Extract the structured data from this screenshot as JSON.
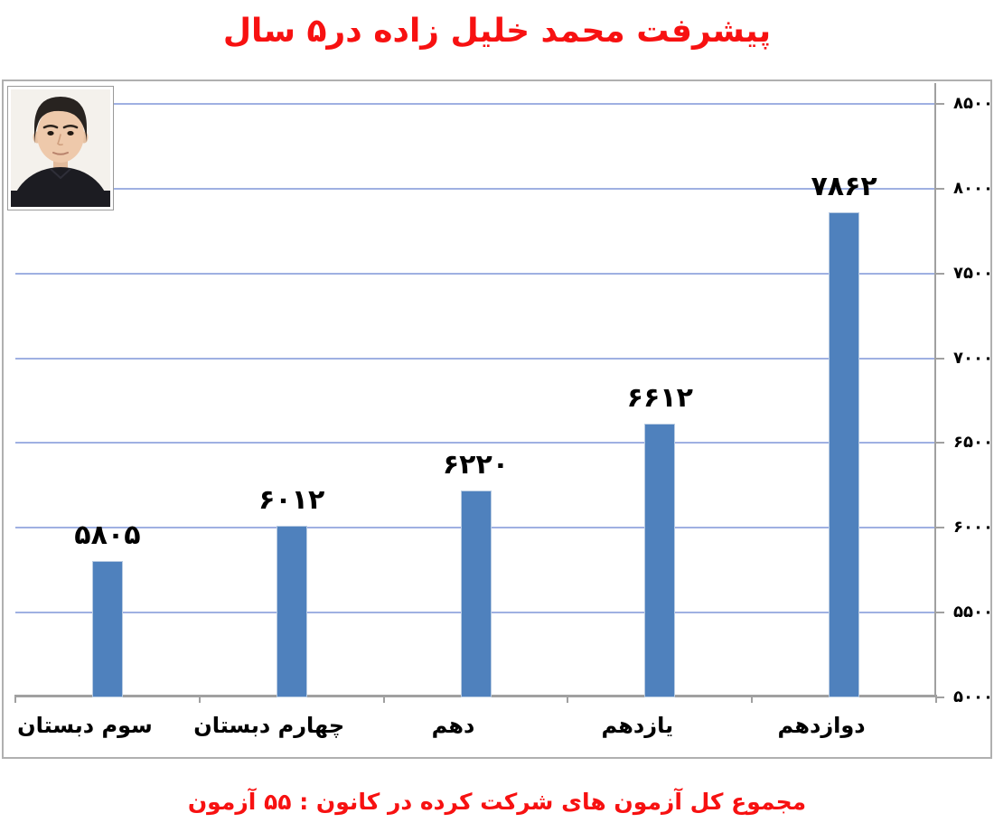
{
  "page": {
    "title": "پیشرفت محمد خلیل زاده در۵ سال",
    "caption": "مجموع کل آزمون های شرکت کرده در کانون : ۵۵ آزمون"
  },
  "icons": {
    "student_photo": "student-portrait-photo"
  },
  "colors": {
    "title_red": "#f71111",
    "text_black": "#000000",
    "frame_border": "#b0b0b0"
  },
  "chart_data": {
    "type": "bar",
    "title": "پیشرفت محمد خلیل زاده در۵ سال",
    "xlabel": "",
    "ylabel": "",
    "categories": [
      "سوم دبستان",
      "چهارم دبستان",
      "دهم",
      "یازدهم",
      "دوازدهم"
    ],
    "values": [
      5805,
      6012,
      6220,
      6612,
      7862
    ],
    "value_labels": [
      "۵۸۰۵",
      "۶۰۱۲",
      "۶۲۲۰",
      "۶۶۱۲",
      "۷۸۶۲"
    ],
    "y_ticks": [
      5000,
      5500,
      6000,
      6500,
      7000,
      7500,
      8000,
      8500
    ],
    "y_tick_labels": [
      "۵۰۰۰",
      "۵۵۰۰",
      "۶۰۰۰",
      "۶۵۰۰",
      "۷۰۰۰",
      "۷۵۰۰",
      "۸۰۰۰",
      "۸۵۰۰"
    ],
    "ylim": [
      5000,
      8500
    ],
    "grid": "horizontal",
    "legend": "none",
    "y_axis_side": "right",
    "bar_color": "#4f81bd",
    "bar_border_color": "#b8cbe2",
    "gridline_color": "#9fb0e2",
    "axis_color": "#a0a0a0"
  }
}
